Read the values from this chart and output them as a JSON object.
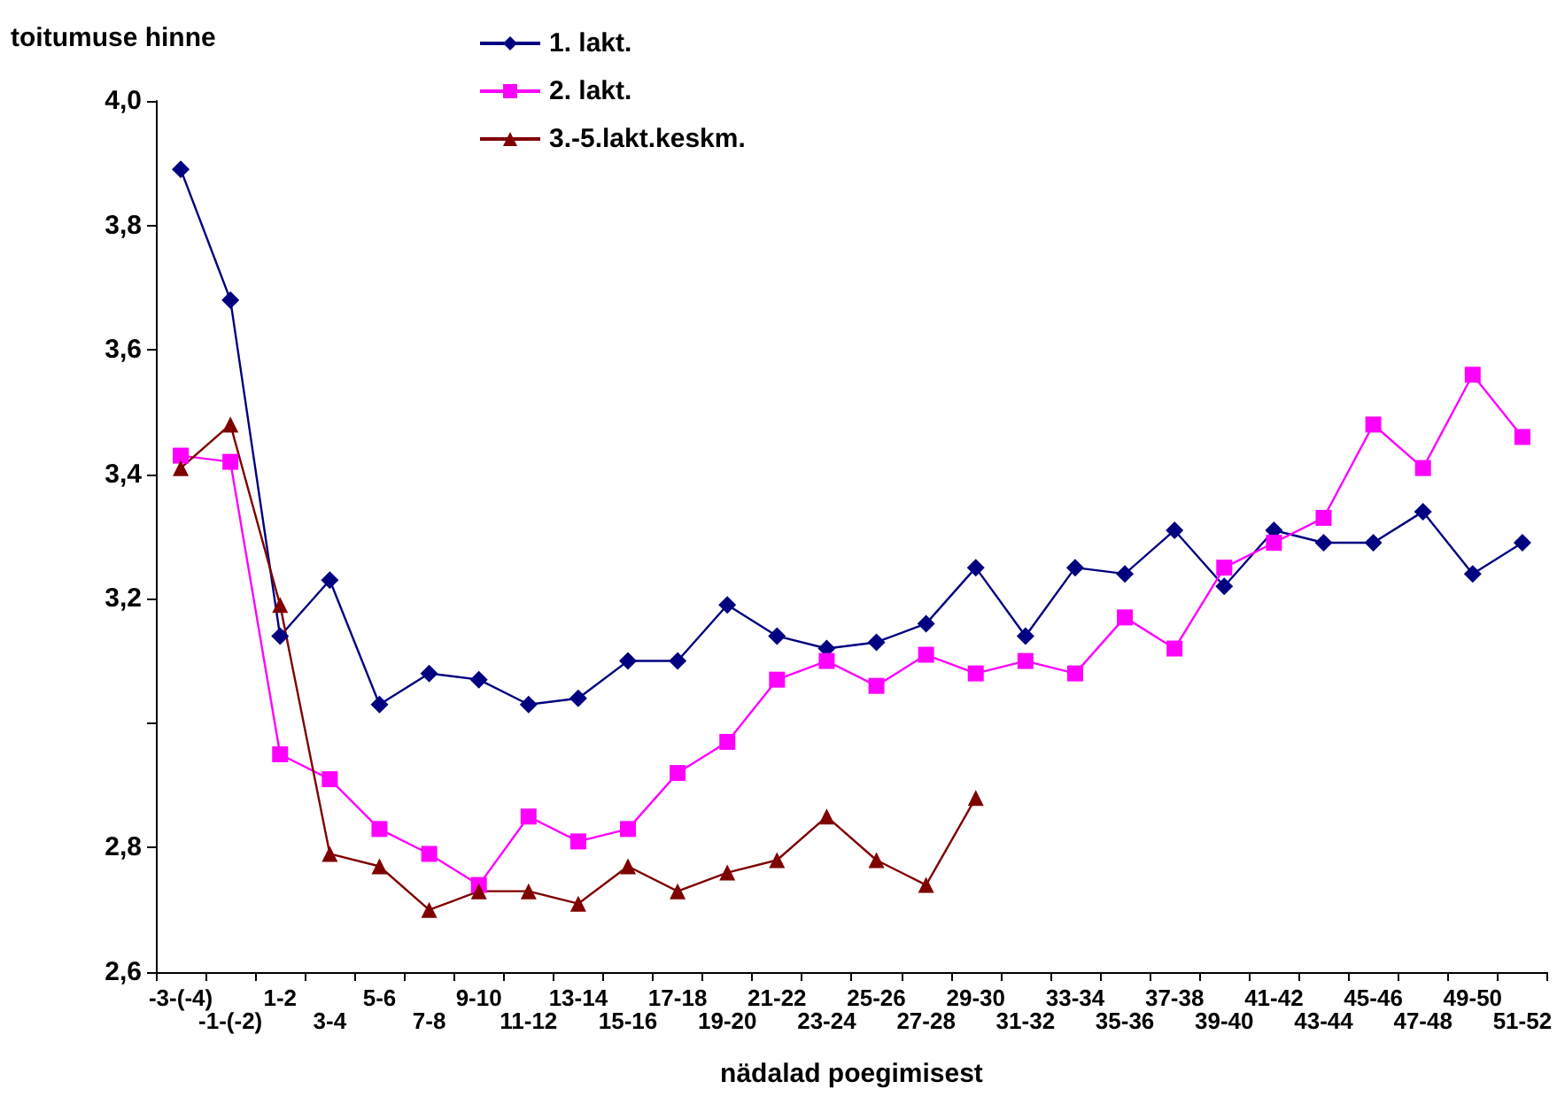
{
  "chart_data": {
    "type": "line",
    "ylabel": "toitumuse hinne",
    "xlabel": "nädalad poegimisest",
    "categories": [
      "-3-(-4)",
      "-1-(-2)",
      "1-2",
      "3-4",
      "5-6",
      "7-8",
      "9-10",
      "11-12",
      "13-14",
      "15-16",
      "17-18",
      "19-20",
      "21-22",
      "23-24",
      "25-26",
      "27-28",
      "29-30",
      "31-32",
      "33-34",
      "35-36",
      "37-38",
      "39-40",
      "41-42",
      "43-44",
      "45-46",
      "47-48",
      "49-50",
      "51-52"
    ],
    "series": [
      {
        "name": "1. lakt.",
        "color": "#000080",
        "marker": "diamond",
        "values": [
          3.89,
          3.68,
          3.14,
          3.23,
          3.03,
          3.08,
          3.07,
          3.03,
          3.04,
          3.1,
          3.1,
          3.19,
          3.14,
          3.12,
          3.13,
          3.16,
          3.25,
          3.14,
          3.25,
          3.24,
          3.31,
          3.22,
          3.31,
          3.29,
          3.29,
          3.34,
          3.24,
          3.29
        ]
      },
      {
        "name": "2. lakt.",
        "color": "#ff00ff",
        "marker": "square",
        "values": [
          3.43,
          3.42,
          2.95,
          2.91,
          2.83,
          2.79,
          2.74,
          2.85,
          2.81,
          2.83,
          2.92,
          2.97,
          3.07,
          3.1,
          3.06,
          3.11,
          3.08,
          3.1,
          3.08,
          3.17,
          3.12,
          3.25,
          3.29,
          3.33,
          3.48,
          3.41,
          3.56,
          3.46
        ]
      },
      {
        "name": "3.-5.lakt.keskm.",
        "color": "#800000",
        "marker": "triangle",
        "values": [
          3.41,
          3.48,
          3.19,
          2.79,
          2.77,
          2.7,
          2.73,
          2.73,
          2.71,
          2.77,
          2.73,
          2.76,
          2.78,
          2.85,
          2.78,
          2.74,
          2.88,
          null,
          null,
          null,
          null,
          null,
          null,
          null,
          null,
          null,
          null,
          null
        ]
      }
    ],
    "ylim": [
      2.6,
      4.0
    ],
    "yticks": [
      {
        "value": 2.6,
        "label": "2,6"
      },
      {
        "value": 2.8,
        "label": "2,8"
      },
      {
        "value": 3.0,
        "label": null
      },
      {
        "value": 3.2,
        "label": "3,2"
      },
      {
        "value": 3.4,
        "label": "3,4"
      },
      {
        "value": 3.6,
        "label": "3,6"
      },
      {
        "value": 3.8,
        "label": "3,8"
      },
      {
        "value": 4.0,
        "label": "4,0"
      }
    ],
    "grid": false,
    "legend": "top",
    "line_style": "solid"
  }
}
